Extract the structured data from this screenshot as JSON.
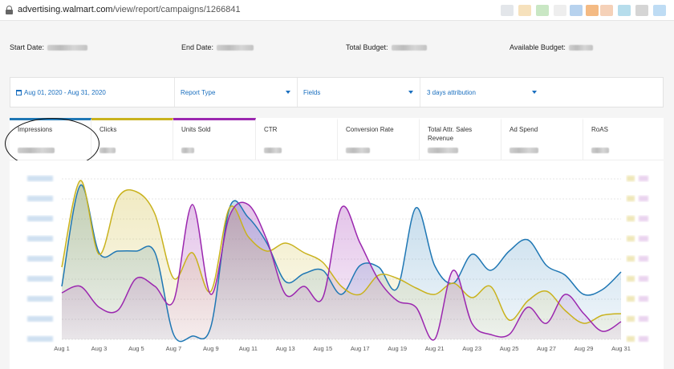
{
  "browser": {
    "url_host": "advertising.walmart.com",
    "url_path": "/view/report/campaigns/1266841"
  },
  "summary": {
    "start_label": "Start Date:",
    "end_label": "End Date:",
    "total_budget_label": "Total Budget:",
    "available_budget_label": "Available Budget:"
  },
  "filters": {
    "date_range": "Aug 01, 2020 - Aug 31, 2020",
    "report_type": "Report Type",
    "fields": "Fields",
    "attribution": "3 days attribution"
  },
  "tabs": [
    {
      "label": "Impressions",
      "color": "#1f77b4",
      "active": true
    },
    {
      "label": "Clicks",
      "color": "#c9b21d",
      "active": true
    },
    {
      "label": "Units Sold",
      "color": "#9b27af",
      "active": true
    },
    {
      "label": "CTR",
      "active": false
    },
    {
      "label": "Conversion Rate",
      "active": false
    },
    {
      "label": "Total Attr. Sales Revenue",
      "active": false
    },
    {
      "label": "Ad Spend",
      "active": false
    },
    {
      "label": "RoAS",
      "active": false
    }
  ],
  "chart_data": {
    "type": "area",
    "x_tick_labels": [
      "Aug 1",
      "Aug 3",
      "Aug 5",
      "Aug 7",
      "Aug 9",
      "Aug 11",
      "Aug 13",
      "Aug 15",
      "Aug 17",
      "Aug 19",
      "Aug 21",
      "Aug 23",
      "Aug 25",
      "Aug 27",
      "Aug 29",
      "Aug 31"
    ],
    "x": [
      1,
      2,
      3,
      4,
      5,
      6,
      7,
      8,
      9,
      10,
      11,
      12,
      13,
      14,
      15,
      16,
      17,
      18,
      19,
      20,
      21,
      22,
      23,
      24,
      25,
      26,
      27,
      28,
      29,
      30,
      31
    ],
    "ylim": [
      0,
      100
    ],
    "series": [
      {
        "color": "#1f77b4",
        "values": [
          33,
          96,
          54,
          55,
          55,
          54,
          3,
          2,
          8,
          82,
          76,
          60,
          36,
          41,
          43,
          28,
          46,
          45,
          32,
          82,
          46,
          35,
          53,
          43,
          55,
          62,
          46,
          40,
          28,
          31,
          42
        ]
      },
      {
        "color": "#c9b21d",
        "values": [
          45,
          99,
          53,
          88,
          92,
          78,
          38,
          54,
          30,
          82,
          64,
          55,
          60,
          54,
          48,
          33,
          28,
          40,
          38,
          32,
          28,
          35,
          26,
          33,
          12,
          24,
          30,
          18,
          10,
          15,
          16
        ]
      },
      {
        "color": "#9b27af",
        "values": [
          29,
          33,
          20,
          18,
          38,
          33,
          24,
          84,
          28,
          77,
          84,
          62,
          28,
          33,
          26,
          82,
          60,
          37,
          24,
          20,
          0,
          43,
          10,
          3,
          3,
          20,
          10,
          28,
          16,
          5,
          11
        ]
      }
    ]
  }
}
